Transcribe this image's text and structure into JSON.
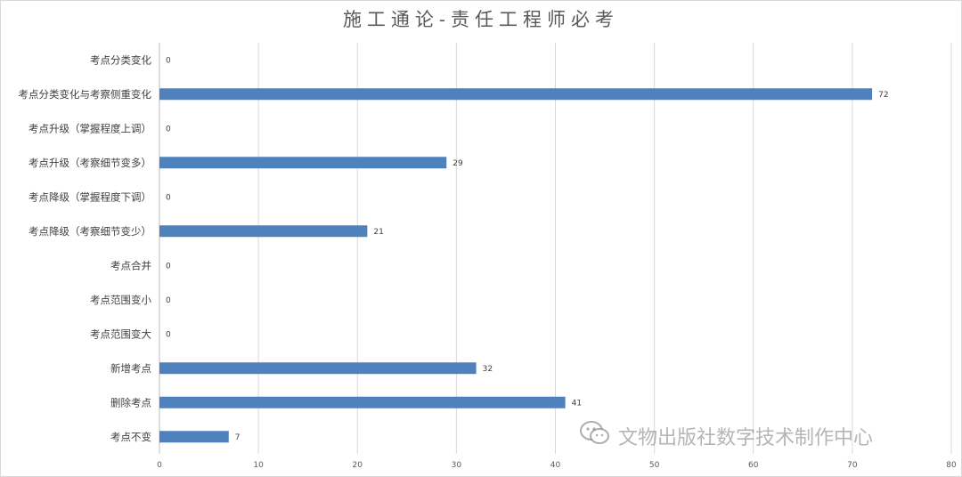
{
  "chart_data": {
    "type": "bar",
    "orientation": "horizontal",
    "title": "施工通论-责任工程师必考",
    "categories": [
      "考点分类变化",
      "考点分类变化与考察侧重变化",
      "考点升级（掌握程度上调）",
      "考点升级（考察细节变多）",
      "考点降级（掌握程度下调）",
      "考点降级（考察细节变少）",
      "考点合并",
      "考点范围变小",
      "考点范围变大",
      "新增考点",
      "删除考点",
      "考点不变"
    ],
    "values": [
      0,
      72,
      0,
      29,
      0,
      21,
      0,
      0,
      0,
      32,
      41,
      7
    ],
    "xlim": [
      0,
      80
    ],
    "xticks": [
      0,
      10,
      20,
      30,
      40,
      50,
      60,
      70,
      80
    ],
    "grid": true,
    "legend": "none",
    "bar_color": "#4f81bd"
  },
  "watermark": {
    "text": "文物出版社数字技术制作中心",
    "icon": "wechat-icon"
  }
}
